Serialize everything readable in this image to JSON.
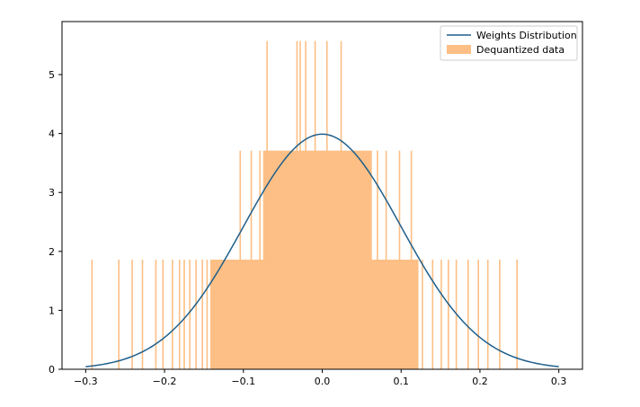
{
  "chart_data": {
    "type": "bar",
    "title": "",
    "xlabel": "",
    "ylabel": "",
    "xlim": [
      -0.33,
      0.33
    ],
    "ylim": [
      0,
      5.9
    ],
    "grid": false,
    "legend_position": "top-right",
    "colors": {
      "line": "#1f5f8b",
      "bars": "#fdbf85"
    },
    "x_ticks": [
      -0.3,
      -0.2,
      -0.1,
      0.0,
      0.1,
      0.2,
      0.3
    ],
    "x_tick_labels": [
      "−0.3",
      "−0.2",
      "−0.1",
      "0.0",
      "0.1",
      "0.2",
      "0.3"
    ],
    "y_ticks": [
      0,
      1,
      2,
      3,
      4,
      5
    ],
    "y_tick_labels": [
      "0",
      "1",
      "2",
      "3",
      "4",
      "5"
    ],
    "series": [
      {
        "name": "Weights Distribution",
        "kind": "line",
        "mean": 0.0,
        "std": 0.1,
        "x_range": [
          -0.3,
          0.3
        ]
      },
      {
        "name": "Dequantized data",
        "kind": "histogram",
        "bars": [
          {
            "x": -0.292,
            "y": 1.86
          },
          {
            "x": -0.258,
            "y": 1.86
          },
          {
            "x": -0.241,
            "y": 1.86
          },
          {
            "x": -0.228,
            "y": 1.86
          },
          {
            "x": -0.211,
            "y": 1.86
          },
          {
            "x": -0.202,
            "y": 1.86
          },
          {
            "x": -0.19,
            "y": 1.86
          },
          {
            "x": -0.181,
            "y": 1.86
          },
          {
            "x": -0.175,
            "y": 1.86
          },
          {
            "x": -0.168,
            "y": 1.86
          },
          {
            "x": -0.16,
            "y": 1.86
          },
          {
            "x": -0.152,
            "y": 1.86
          },
          {
            "x": -0.146,
            "y": 1.86
          },
          {
            "x": -0.104,
            "y": 3.71
          },
          {
            "x": -0.09,
            "y": 3.71
          },
          {
            "x": -0.079,
            "y": 3.71
          },
          {
            "x": -0.07,
            "y": 5.57
          },
          {
            "x": -0.058,
            "y": 3.71
          },
          {
            "x": -0.047,
            "y": 3.71
          },
          {
            "x": -0.032,
            "y": 5.57
          },
          {
            "x": -0.028,
            "y": 5.57
          },
          {
            "x": -0.021,
            "y": 5.57
          },
          {
            "x": -0.009,
            "y": 5.57
          },
          {
            "x": 0.006,
            "y": 5.57
          },
          {
            "x": 0.024,
            "y": 5.57
          },
          {
            "x": 0.041,
            "y": 3.71
          },
          {
            "x": 0.055,
            "y": 3.71
          },
          {
            "x": 0.062,
            "y": 3.71
          },
          {
            "x": 0.07,
            "y": 3.71
          },
          {
            "x": 0.081,
            "y": 3.71
          },
          {
            "x": 0.098,
            "y": 3.71
          },
          {
            "x": 0.113,
            "y": 3.71
          },
          {
            "x": 0.127,
            "y": 1.86
          },
          {
            "x": 0.14,
            "y": 1.86
          },
          {
            "x": 0.151,
            "y": 1.86
          },
          {
            "x": 0.16,
            "y": 1.86
          },
          {
            "x": 0.17,
            "y": 1.86
          },
          {
            "x": 0.185,
            "y": 1.86
          },
          {
            "x": 0.198,
            "y": 1.86
          },
          {
            "x": 0.21,
            "y": 1.86
          },
          {
            "x": 0.225,
            "y": 1.86
          },
          {
            "x": 0.247,
            "y": 1.86
          }
        ],
        "dense_band": {
          "x_range": [
            -0.142,
            0.122
          ],
          "y": 1.86
        },
        "central_band": {
          "x_range": [
            -0.075,
            0.062
          ],
          "y": 3.71
        }
      }
    ]
  }
}
